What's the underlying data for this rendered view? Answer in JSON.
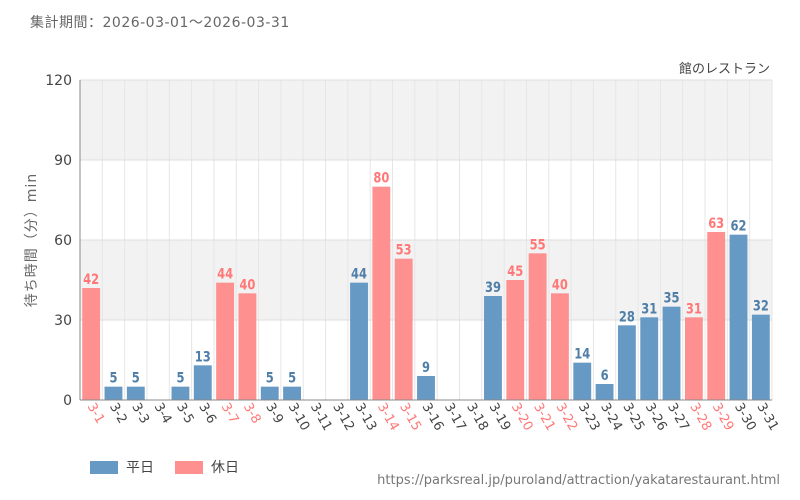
{
  "header": {
    "period_label": "集計期間：2026-03-01～2026-03-31"
  },
  "chart_data": {
    "type": "bar",
    "title": "館のレストラン",
    "ylabel": "待ち時間（分）min",
    "xlabel": "",
    "ylim": [
      0,
      120
    ],
    "yticks": [
      0,
      30,
      60,
      90,
      120
    ],
    "grid": true,
    "legend_position": "bottom-left",
    "categories": [
      "3-1",
      "3-2",
      "3-3",
      "3-4",
      "3-5",
      "3-6",
      "3-7",
      "3-8",
      "3-9",
      "3-10",
      "3-11",
      "3-12",
      "3-13",
      "3-14",
      "3-15",
      "3-16",
      "3-17",
      "3-18",
      "3-19",
      "3-20",
      "3-21",
      "3-22",
      "3-23",
      "3-24",
      "3-25",
      "3-26",
      "3-27",
      "3-28",
      "3-29",
      "3-30",
      "3-31"
    ],
    "values": [
      42,
      5,
      5,
      null,
      5,
      13,
      44,
      40,
      5,
      5,
      null,
      null,
      44,
      80,
      53,
      9,
      null,
      null,
      39,
      45,
      55,
      40,
      14,
      6,
      28,
      31,
      35,
      31,
      63,
      62,
      32
    ],
    "day_type": [
      "holiday",
      "weekday",
      "weekday",
      "weekday",
      "weekday",
      "weekday",
      "holiday",
      "holiday",
      "weekday",
      "weekday",
      "weekday",
      "weekday",
      "weekday",
      "holiday",
      "holiday",
      "weekday",
      "weekday",
      "weekday",
      "weekday",
      "holiday",
      "holiday",
      "holiday",
      "weekday",
      "weekday",
      "weekday",
      "weekday",
      "weekday",
      "holiday",
      "holiday",
      "weekday",
      "weekday"
    ],
    "series": [
      {
        "key": "weekday",
        "name": "平日",
        "color": "#6699c4"
      },
      {
        "key": "holiday",
        "name": "休日",
        "color": "#ff9090"
      }
    ],
    "label_colors": {
      "weekday": "#4f7fa8",
      "holiday": "#ff7777"
    },
    "tick_label_colors": {
      "weekday": "#444444",
      "holiday": "#ff7777"
    }
  },
  "footer": {
    "source_url": "https://parksreal.jp/puroland/attraction/yakatarestaurant.html"
  }
}
